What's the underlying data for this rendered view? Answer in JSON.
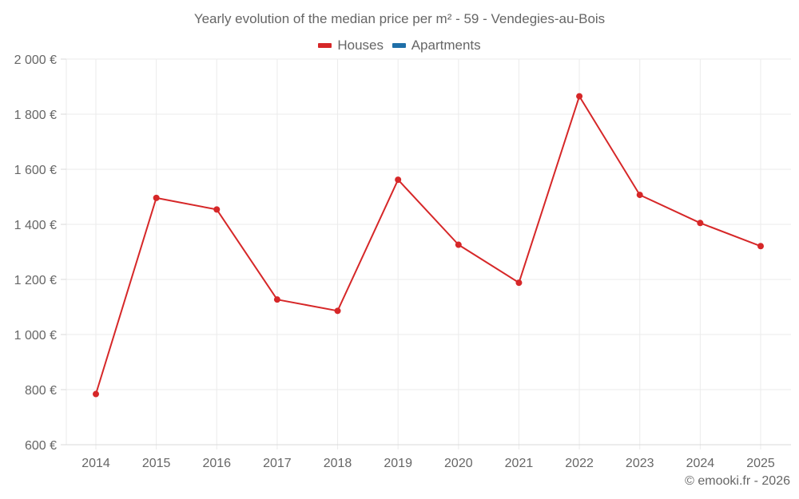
{
  "chart_data": {
    "type": "line",
    "title": "Yearly evolution of the median price per m² - 59 - Vendegies-au-Bois",
    "xlabel": "",
    "ylabel": "",
    "categories": [
      "2014",
      "2015",
      "2016",
      "2017",
      "2018",
      "2019",
      "2020",
      "2021",
      "2022",
      "2023",
      "2024",
      "2025"
    ],
    "series": [
      {
        "name": "Houses",
        "color": "#d62728",
        "values": [
          784,
          1496,
          1454,
          1127,
          1086,
          1562,
          1326,
          1188,
          1865,
          1507,
          1405,
          1321
        ]
      },
      {
        "name": "Apartments",
        "color": "#1f6fa8",
        "values": []
      }
    ],
    "ylim": [
      600,
      2000
    ],
    "yticks": [
      600,
      800,
      1000,
      1200,
      1400,
      1600,
      1800,
      2000
    ],
    "ytick_labels": [
      "600 €",
      "800 €",
      "1 000 €",
      "1 200 €",
      "1 400 €",
      "1 600 €",
      "1 800 €",
      "2 000 €"
    ],
    "grid": true,
    "legend_position": "top"
  },
  "header": {
    "title": "Yearly evolution of the median price per m² - 59 - Vendegies-au-Bois"
  },
  "legend": {
    "items": [
      {
        "label": "Houses",
        "color": "#d62728"
      },
      {
        "label": "Apartments",
        "color": "#1f6fa8"
      }
    ]
  },
  "footer": {
    "credit": "© emooki.fr - 2026"
  }
}
